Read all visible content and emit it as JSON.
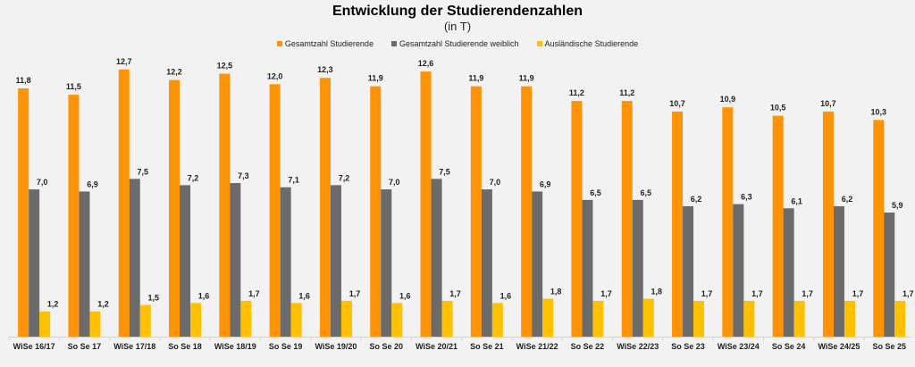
{
  "chart_data": {
    "type": "bar",
    "title": "Entwicklung der Studierendenzahlen",
    "subtitle": "(in T)",
    "categories": [
      "WiSe 16/17",
      "So Se 17",
      "WiSe 17/18",
      "So Se 18",
      "WiSe 18/19",
      "So Se 19",
      "WiSe 19/20",
      "So Se 20",
      "WiSe 20/21",
      "So Se 21",
      "WiSe 21/22",
      "So Se 22",
      "WiSe 22/23",
      "So Se 23",
      "WiSe 23/24",
      "So Se 24",
      "WiSe 24/25",
      "So Se 25"
    ],
    "series": [
      {
        "name": "Gesamtzahl Studierende",
        "color": "#ff9307",
        "values": [
          11.8,
          11.5,
          12.7,
          12.2,
          12.5,
          12.0,
          12.3,
          11.9,
          12.6,
          11.9,
          11.9,
          11.2,
          11.2,
          10.7,
          10.9,
          10.5,
          10.7,
          10.3
        ]
      },
      {
        "name": "Gesamtzahl Studierende weiblich",
        "color": "#6b6b6b",
        "values": [
          7.0,
          6.9,
          7.5,
          7.2,
          7.3,
          7.1,
          7.2,
          7.0,
          7.5,
          7.0,
          6.9,
          6.5,
          6.5,
          6.2,
          6.3,
          6.1,
          6.2,
          5.9
        ]
      },
      {
        "name": "Ausländische Studierende",
        "color": "#ffc000",
        "values": [
          1.2,
          1.2,
          1.5,
          1.6,
          1.7,
          1.6,
          1.7,
          1.6,
          1.7,
          1.6,
          1.8,
          1.7,
          1.8,
          1.7,
          1.7,
          1.7,
          1.7,
          1.7
        ]
      }
    ],
    "ylim": [
      0,
      13
    ],
    "grid": false,
    "legend_position": "top",
    "decimal_separator": ","
  }
}
